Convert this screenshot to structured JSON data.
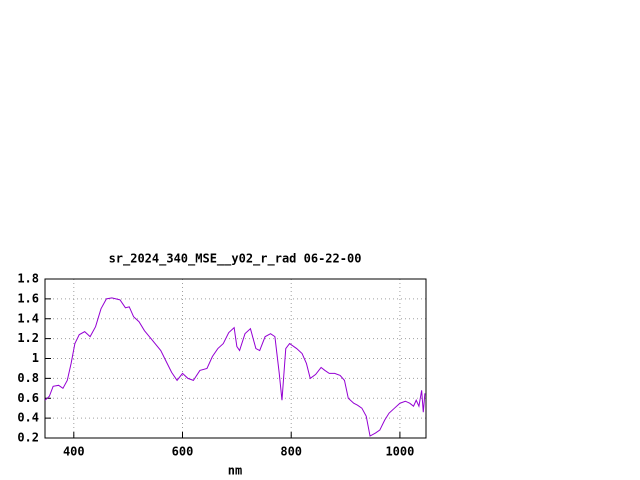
{
  "chart_data": {
    "type": "line",
    "title": "sr_2024_340_MSE__y02_r_rad 06-22-00",
    "x_label": "nm",
    "color": "#9400d3",
    "x": [
      347,
      355,
      362,
      372,
      380,
      388,
      395,
      402,
      410,
      420,
      430,
      440,
      450,
      460,
      470,
      485,
      495,
      502,
      510,
      520,
      530,
      545,
      560,
      570,
      580,
      590,
      600,
      610,
      620,
      632,
      645,
      655,
      665,
      675,
      685,
      695,
      700,
      705,
      715,
      725,
      735,
      742,
      752,
      762,
      770,
      778,
      783,
      790,
      797,
      810,
      820,
      828,
      835,
      845,
      855,
      862,
      870,
      880,
      890,
      898,
      905,
      915,
      922,
      930,
      938,
      945,
      955,
      963,
      972,
      980,
      990,
      1000,
      1010,
      1018,
      1025,
      1030,
      1035,
      1040,
      1043,
      1046
    ],
    "values": [
      0.58,
      0.62,
      0.72,
      0.73,
      0.7,
      0.78,
      0.95,
      1.15,
      1.24,
      1.27,
      1.22,
      1.32,
      1.5,
      1.6,
      1.61,
      1.59,
      1.51,
      1.52,
      1.42,
      1.37,
      1.28,
      1.18,
      1.08,
      0.97,
      0.86,
      0.78,
      0.85,
      0.8,
      0.78,
      0.88,
      0.9,
      1.02,
      1.1,
      1.15,
      1.26,
      1.31,
      1.12,
      1.08,
      1.25,
      1.3,
      1.1,
      1.08,
      1.22,
      1.25,
      1.22,
      0.85,
      0.58,
      1.1,
      1.15,
      1.1,
      1.05,
      0.95,
      0.8,
      0.84,
      0.91,
      0.88,
      0.85,
      0.85,
      0.83,
      0.78,
      0.6,
      0.55,
      0.53,
      0.5,
      0.42,
      0.22,
      0.25,
      0.28,
      0.38,
      0.45,
      0.5,
      0.55,
      0.57,
      0.55,
      0.52,
      0.58,
      0.52,
      0.68,
      0.46,
      0.65
    ],
    "xlim": [
      347,
      1048
    ],
    "xticks": [
      400,
      600,
      800,
      1000
    ],
    "ylim": [
      0.2,
      1.8
    ],
    "yticks": [
      0.2,
      0.4,
      0.6,
      0.8,
      1,
      1.2,
      1.4,
      1.6,
      1.8
    ],
    "grid": true
  }
}
